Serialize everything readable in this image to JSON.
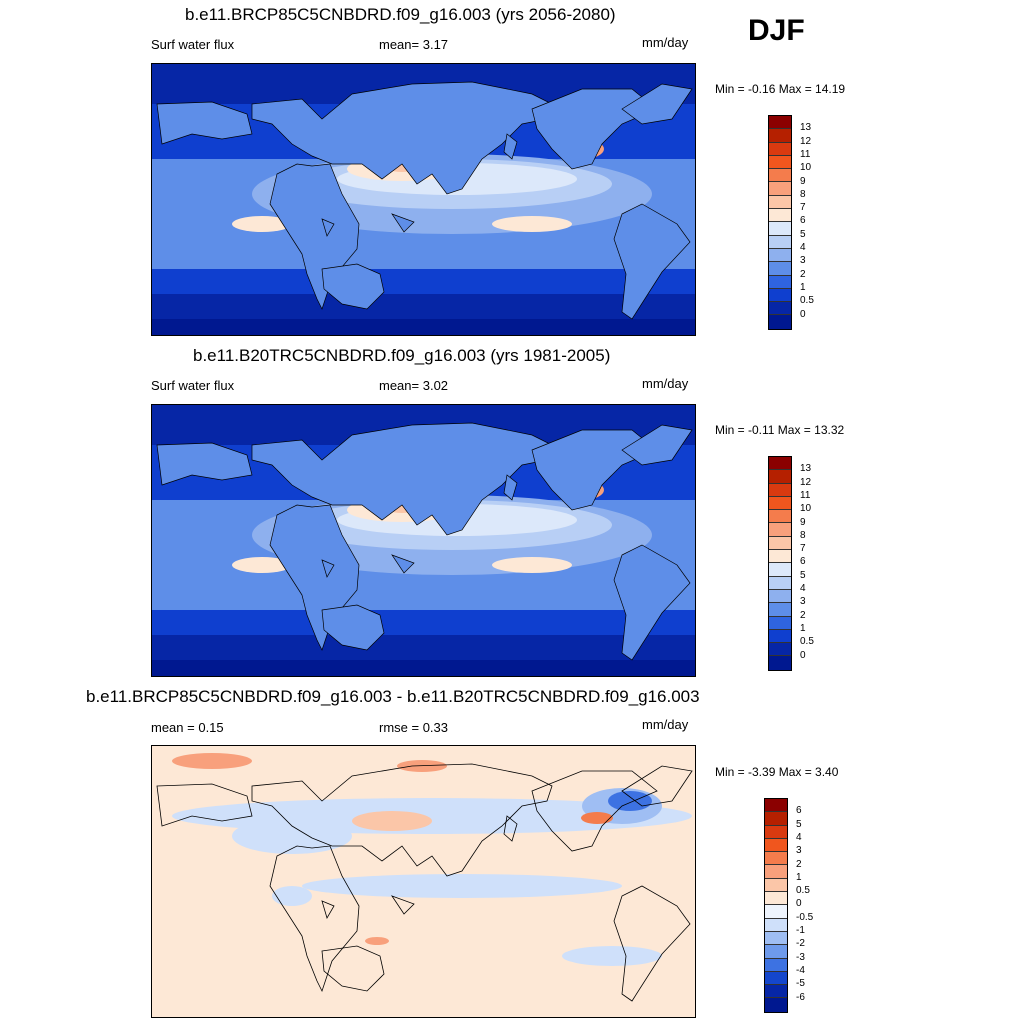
{
  "season": "DJF",
  "panels": [
    {
      "title": "b.e11.BRCP85C5CNBDRD.f09_g16.003 (yrs 2056-2080)",
      "left_text": "Surf water flux",
      "center_text": "mean=   3.17",
      "units": "mm/day",
      "minmax": "Min =  -0.16 Max =  14.19",
      "colorbar": {
        "labels": [
          "13",
          "12",
          "11",
          "10",
          "9",
          "8",
          "7",
          "6",
          "5",
          "4",
          "3",
          "2",
          "1",
          "0.5",
          "0"
        ],
        "colors": [
          "#8b0000",
          "#b52000",
          "#d93a10",
          "#f0561e",
          "#f47c4c",
          "#f8a07c",
          "#fbc6a8",
          "#fde8d6",
          "#dce8fa",
          "#b8cff5",
          "#8eb0ee",
          "#5e8ee8",
          "#2f64e0",
          "#0f3fcf",
          "#0626a6",
          "#001890"
        ]
      },
      "field": "abs"
    },
    {
      "title": "b.e11.B20TRC5CNBDRD.f09_g16.003 (yrs 1981-2005)",
      "left_text": "Surf water flux",
      "center_text": "mean=   3.02",
      "units": "mm/day",
      "minmax": "Min =  -0.11 Max =  13.32",
      "colorbar": {
        "labels": [
          "13",
          "12",
          "11",
          "10",
          "9",
          "8",
          "7",
          "6",
          "5",
          "4",
          "3",
          "2",
          "1",
          "0.5",
          "0"
        ],
        "colors": [
          "#8b0000",
          "#b52000",
          "#d93a10",
          "#f0561e",
          "#f47c4c",
          "#f8a07c",
          "#fbc6a8",
          "#fde8d6",
          "#dce8fa",
          "#b8cff5",
          "#8eb0ee",
          "#5e8ee8",
          "#2f64e0",
          "#0f3fcf",
          "#0626a6",
          "#001890"
        ]
      },
      "field": "abs"
    },
    {
      "title": "b.e11.BRCP85C5CNBDRD.f09_g16.003 - b.e11.B20TRC5CNBDRD.f09_g16.003",
      "left_text": "mean =   0.15",
      "center_text": "rmse =   0.33",
      "units": "mm/day",
      "minmax": "Min =  -3.39 Max =   3.40",
      "colorbar": {
        "labels": [
          "6",
          "5",
          "4",
          "3",
          "2",
          "1",
          "0.5",
          "0",
          "-0.5",
          "-1",
          "-2",
          "-3",
          "-4",
          "-5",
          "-6"
        ],
        "colors": [
          "#8b0000",
          "#b52000",
          "#d93a10",
          "#f0561e",
          "#f47c4c",
          "#f8a07c",
          "#fbc6a8",
          "#fde8d6",
          "#eef4fd",
          "#cfe0fa",
          "#9fbef3",
          "#6e9aeb",
          "#3d72e2",
          "#1446cc",
          "#0626a6",
          "#001890"
        ]
      },
      "field": "diff"
    }
  ]
}
